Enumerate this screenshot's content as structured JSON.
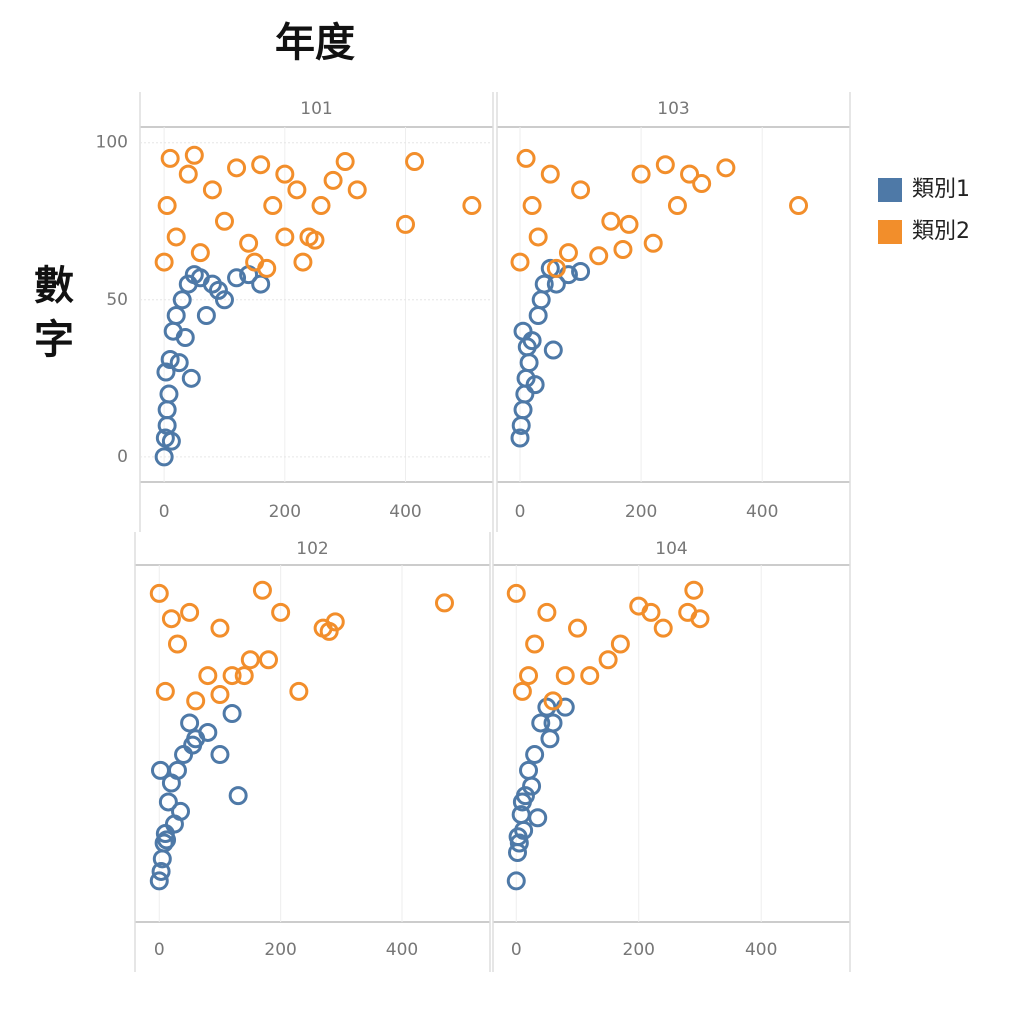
{
  "column_title": "年度",
  "row_title": "數字",
  "chart_data": [
    {
      "type": "scatter",
      "title": "101",
      "xlim": [
        -40,
        545
      ],
      "ylim": [
        -8,
        105
      ],
      "xticks": [
        0,
        200,
        400
      ],
      "yticks": [
        0,
        50,
        100
      ],
      "grid": true,
      "series": [
        {
          "name": "類別1",
          "color": "#4e79a7",
          "x": [
            0,
            2,
            5,
            8,
            3,
            10,
            15,
            20,
            30,
            40,
            50,
            60,
            80,
            100,
            120,
            140,
            160,
            35,
            25,
            12,
            70,
            90,
            45,
            5
          ],
          "values": [
            0,
            6,
            15,
            20,
            27,
            31,
            40,
            45,
            50,
            55,
            58,
            57,
            55,
            50,
            57,
            58,
            55,
            38,
            30,
            5,
            45,
            53,
            25,
            10
          ]
        },
        {
          "name": "類別2",
          "color": "#f28e2b",
          "x": [
            0,
            10,
            20,
            40,
            60,
            80,
            100,
            120,
            140,
            160,
            180,
            200,
            220,
            240,
            260,
            280,
            300,
            320,
            400,
            415,
            510,
            250,
            230,
            200,
            150,
            50,
            5,
            170
          ],
          "values": [
            62,
            95,
            70,
            90,
            65,
            85,
            75,
            92,
            68,
            93,
            80,
            90,
            85,
            70,
            80,
            88,
            94,
            85,
            74,
            94,
            80,
            69,
            62,
            70,
            62,
            96,
            80,
            60
          ]
        }
      ]
    },
    {
      "type": "scatter",
      "title": "103",
      "xlim": [
        -38,
        545
      ],
      "ylim": [
        -8,
        105
      ],
      "xticks": [
        0,
        200,
        400
      ],
      "grid": true,
      "series": [
        {
          "name": "類別1",
          "color": "#4e79a7",
          "x": [
            0,
            2,
            5,
            8,
            10,
            15,
            20,
            30,
            40,
            50,
            60,
            80,
            100,
            12,
            25,
            55,
            35,
            5
          ],
          "values": [
            6,
            10,
            15,
            20,
            25,
            30,
            37,
            45,
            55,
            60,
            55,
            58,
            59,
            35,
            23,
            34,
            50,
            40
          ]
        },
        {
          "name": "類別2",
          "color": "#f28e2b",
          "x": [
            0,
            10,
            30,
            50,
            80,
            100,
            150,
            200,
            220,
            240,
            260,
            280,
            300,
            340,
            460,
            180,
            130,
            170,
            60,
            20
          ],
          "values": [
            62,
            95,
            70,
            90,
            65,
            85,
            75,
            90,
            68,
            93,
            80,
            90,
            87,
            92,
            80,
            74,
            64,
            66,
            60,
            80
          ]
        }
      ]
    },
    {
      "type": "scatter",
      "title": "102",
      "xlim": [
        -40,
        545
      ],
      "ylim": [
        -8,
        105
      ],
      "xticks": [
        0,
        200,
        400
      ],
      "grid": true,
      "series": [
        {
          "name": "類別1",
          "color": "#4e79a7",
          "x": [
            0,
            3,
            5,
            8,
            10,
            15,
            20,
            30,
            40,
            50,
            60,
            80,
            100,
            120,
            130,
            25,
            12,
            35,
            55,
            2
          ],
          "values": [
            5,
            8,
            12,
            17,
            20,
            30,
            36,
            40,
            45,
            55,
            50,
            52,
            45,
            58,
            32,
            23,
            18,
            27,
            48,
            40
          ]
        },
        {
          "name": "類別2",
          "color": "#f28e2b",
          "x": [
            0,
            10,
            30,
            50,
            80,
            100,
            150,
            170,
            200,
            230,
            270,
            280,
            290,
            470,
            180,
            140,
            120,
            100,
            60,
            20
          ],
          "values": [
            96,
            65,
            80,
            90,
            70,
            85,
            75,
            97,
            90,
            65,
            85,
            84,
            87,
            93,
            75,
            70,
            70,
            64,
            62,
            88
          ]
        }
      ]
    },
    {
      "type": "scatter",
      "title": "104",
      "xlim": [
        -38,
        545
      ],
      "ylim": [
        -8,
        105
      ],
      "xticks": [
        0,
        200,
        400
      ],
      "grid": true,
      "series": [
        {
          "name": "類別1",
          "color": "#4e79a7",
          "x": [
            0,
            2,
            5,
            8,
            10,
            15,
            20,
            30,
            40,
            50,
            60,
            80,
            25,
            35,
            55,
            3,
            12
          ],
          "values": [
            5,
            14,
            17,
            26,
            30,
            32,
            40,
            45,
            55,
            60,
            55,
            60,
            35,
            25,
            50,
            19,
            21
          ]
        },
        {
          "name": "類別2",
          "color": "#f28e2b",
          "x": [
            0,
            10,
            30,
            50,
            80,
            100,
            150,
            200,
            220,
            240,
            280,
            290,
            300,
            170,
            120,
            60,
            20
          ],
          "values": [
            96,
            65,
            80,
            90,
            70,
            85,
            75,
            92,
            90,
            85,
            90,
            97,
            88,
            80,
            70,
            62,
            70
          ]
        }
      ]
    }
  ]
}
